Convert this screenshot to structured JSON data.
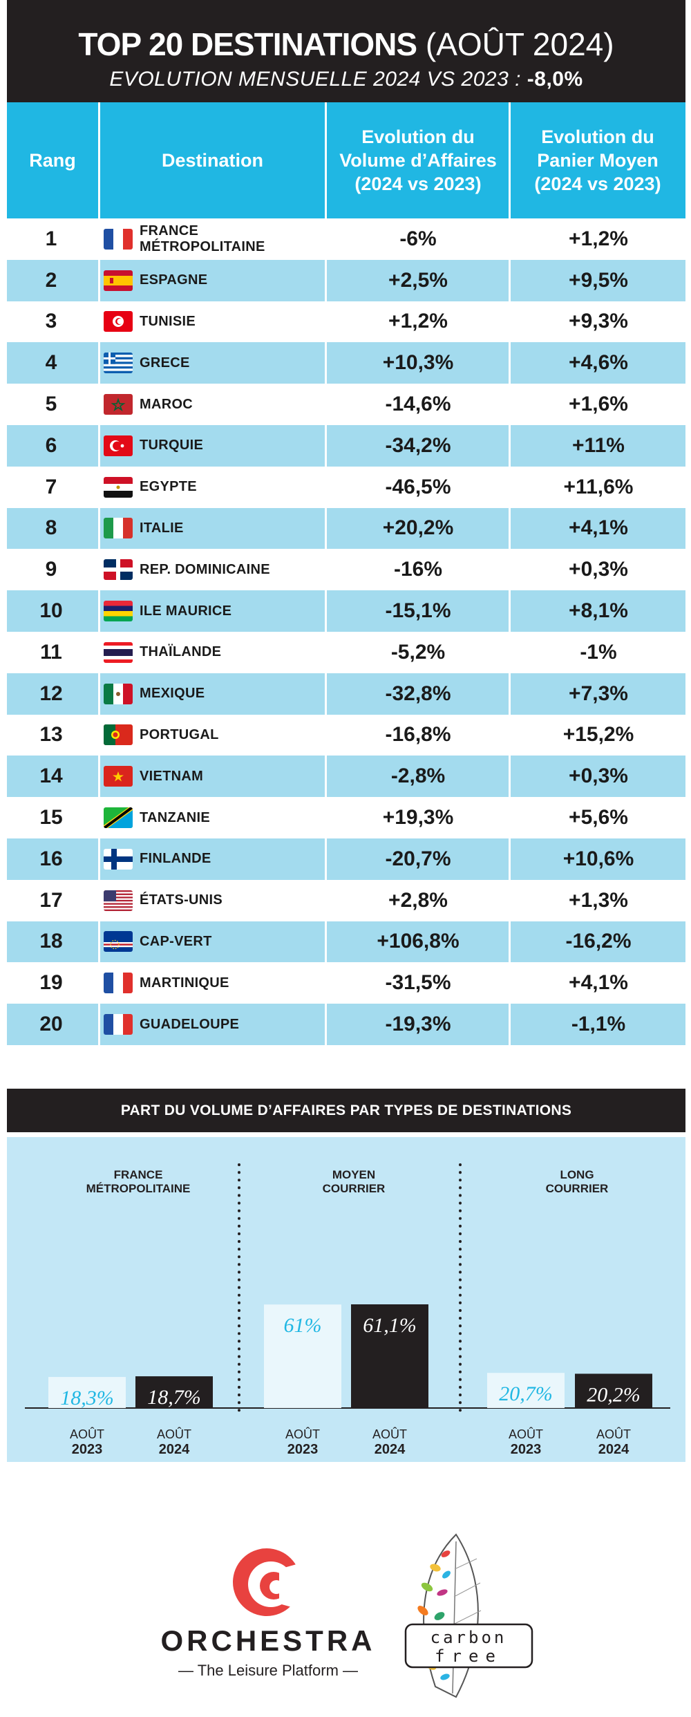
{
  "header": {
    "title_bold": "TOP 20 DESTINATIONS",
    "title_light": "(AOÛT 2024)",
    "subtitle": "EVOLUTION MENSUELLE 2024 VS 2023 :",
    "subtitle_value": "-8,0%"
  },
  "columns": {
    "rank": "Rang",
    "destination": "Destination",
    "volume": "Evolution du Volume d’Affaires (2024 vs 2023)",
    "panier": "Evolution du Panier Moyen (2024 vs 2023)"
  },
  "rows": [
    {
      "rank": "1",
      "destination": "FRANCE MÉTROPOLITAINE",
      "flag": "france-flag",
      "volume": "-6%",
      "panier": "+1,2%"
    },
    {
      "rank": "2",
      "destination": "ESPAGNE",
      "flag": "spain-flag",
      "volume": "+2,5%",
      "panier": "+9,5%"
    },
    {
      "rank": "3",
      "destination": "TUNISIE",
      "flag": "tunisia-flag",
      "volume": "+1,2%",
      "panier": "+9,3%"
    },
    {
      "rank": "4",
      "destination": "GRECE",
      "flag": "greece-flag",
      "volume": "+10,3%",
      "panier": "+4,6%"
    },
    {
      "rank": "5",
      "destination": "MAROC",
      "flag": "morocco-flag",
      "volume": "-14,6%",
      "panier": "+1,6%"
    },
    {
      "rank": "6",
      "destination": "TURQUIE",
      "flag": "turkey-flag",
      "volume": "-34,2%",
      "panier": "+11%"
    },
    {
      "rank": "7",
      "destination": "EGYPTE",
      "flag": "egypt-flag",
      "volume": "-46,5%",
      "panier": "+11,6%"
    },
    {
      "rank": "8",
      "destination": "ITALIE",
      "flag": "italy-flag",
      "volume": "+20,2%",
      "panier": "+4,1%"
    },
    {
      "rank": "9",
      "destination": "REP. DOMINICAINE",
      "flag": "dominican-republic-flag",
      "volume": "-16%",
      "panier": "+0,3%"
    },
    {
      "rank": "10",
      "destination": "ILE MAURICE",
      "flag": "mauritius-flag",
      "volume": "-15,1%",
      "panier": "+8,1%"
    },
    {
      "rank": "11",
      "destination": "THAÏLANDE",
      "flag": "thailand-flag",
      "volume": "-5,2%",
      "panier": "-1%"
    },
    {
      "rank": "12",
      "destination": "MEXIQUE",
      "flag": "mexico-flag",
      "volume": "-32,8%",
      "panier": "+7,3%"
    },
    {
      "rank": "13",
      "destination": "PORTUGAL",
      "flag": "portugal-flag",
      "volume": "-16,8%",
      "panier": "+15,2%"
    },
    {
      "rank": "14",
      "destination": "VIETNAM",
      "flag": "vietnam-flag",
      "volume": "-2,8%",
      "panier": "+0,3%"
    },
    {
      "rank": "15",
      "destination": "TANZANIE",
      "flag": "tanzania-flag",
      "volume": "+19,3%",
      "panier": "+5,6%"
    },
    {
      "rank": "16",
      "destination": "FINLANDE",
      "flag": "finland-flag",
      "volume": "-20,7%",
      "panier": "+10,6%"
    },
    {
      "rank": "17",
      "destination": "ÉTATS-UNIS",
      "flag": "usa-flag",
      "volume": "+2,8%",
      "panier": "+1,3%"
    },
    {
      "rank": "18",
      "destination": "CAP-VERT",
      "flag": "cape-verde-flag",
      "volume": "+106,8%",
      "panier": "-16,2%"
    },
    {
      "rank": "19",
      "destination": "MARTINIQUE",
      "flag": "france-flag",
      "volume": "-31,5%",
      "panier": "+4,1%"
    },
    {
      "rank": "20",
      "destination": "GUADELOUPE",
      "flag": "france-flag",
      "volume": "-19,3%",
      "panier": "-1,1%"
    }
  ],
  "chart_data": {
    "type": "bar",
    "title": "PART DU VOLUME D’AFFAIRES PAR TYPES DE DESTINATIONS",
    "groups": [
      {
        "label_line1": "FRANCE",
        "label_line2": "MÉTROPOLITAINE",
        "values": [
          18.3,
          18.7
        ],
        "value_labels": [
          "18,3%",
          "18,7%"
        ]
      },
      {
        "label_line1": "MOYEN",
        "label_line2": "COURRIER",
        "values": [
          61,
          61.1
        ],
        "value_labels": [
          "61%",
          "61,1%"
        ]
      },
      {
        "label_line1": "LONG",
        "label_line2": "COURRIER",
        "values": [
          20.7,
          20.2
        ],
        "value_labels": [
          "20,7%",
          "20,2%"
        ]
      }
    ],
    "series": [
      {
        "month": "AOÛT",
        "year": "2023",
        "color": "#eaf7fc"
      },
      {
        "month": "AOÛT",
        "year": "2024",
        "color": "#231f20"
      }
    ],
    "ylim": [
      0,
      100
    ]
  },
  "footer": {
    "brand": "ORCHESTRA",
    "tagline": "— The Leisure Platform —",
    "carbon_line1": "carbon",
    "carbon_line2": "free",
    "brand_color": "#e8423f"
  }
}
